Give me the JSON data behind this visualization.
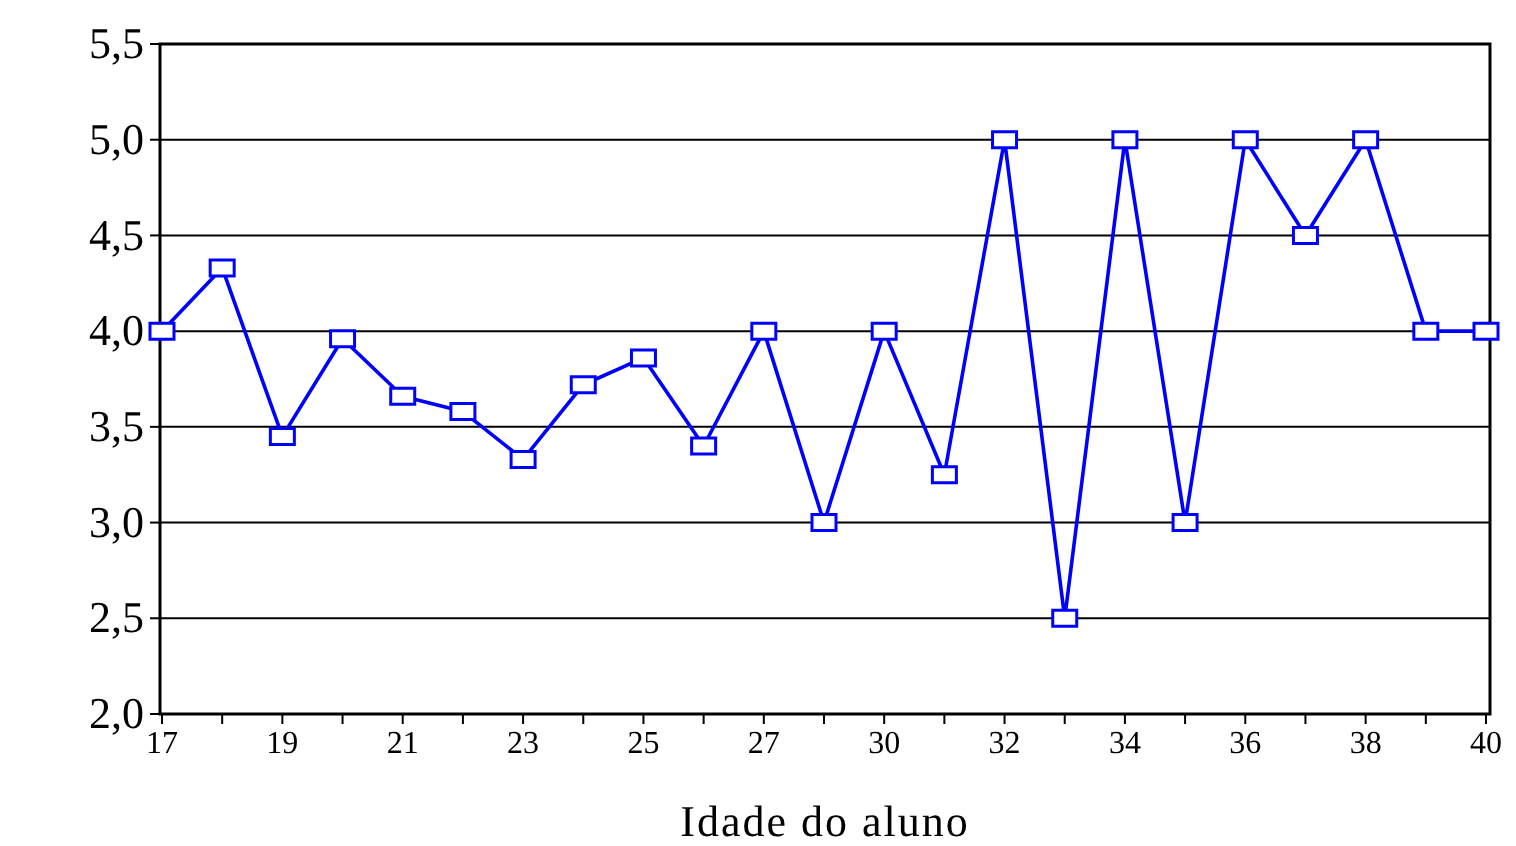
{
  "chart_data": {
    "type": "line",
    "xlabel": "Idade do aluno",
    "categories": [
      "17",
      null,
      "19",
      null,
      "21",
      null,
      "23",
      null,
      "25",
      null,
      "27",
      null,
      "30",
      null,
      "32",
      null,
      "34",
      null,
      "36",
      null,
      "38",
      null,
      "40"
    ],
    "series": [
      {
        "color": "#0000ff",
        "values": [
          4.0,
          4.33,
          3.45,
          3.96,
          3.66,
          3.58,
          3.33,
          3.72,
          3.86,
          3.4,
          4.0,
          3.0,
          4.0,
          3.25,
          5.0,
          2.5,
          5.0,
          3.0,
          5.0,
          4.5,
          5.0,
          4.0,
          4.0
        ]
      }
    ],
    "ylim": [
      2.0,
      5.5
    ],
    "yticks": [
      {
        "value": 2.0,
        "label": "2,0"
      },
      {
        "value": 2.5,
        "label": "2,5"
      },
      {
        "value": 3.0,
        "label": "3,0"
      },
      {
        "value": 3.5,
        "label": "3,5"
      },
      {
        "value": 4.0,
        "label": "4,0"
      },
      {
        "value": 4.5,
        "label": "4,5"
      },
      {
        "value": 5.0,
        "label": "5,0"
      },
      {
        "value": 5.5,
        "label": "5,5"
      }
    ],
    "grid": "y",
    "marker": "square",
    "line_style": "solid"
  }
}
